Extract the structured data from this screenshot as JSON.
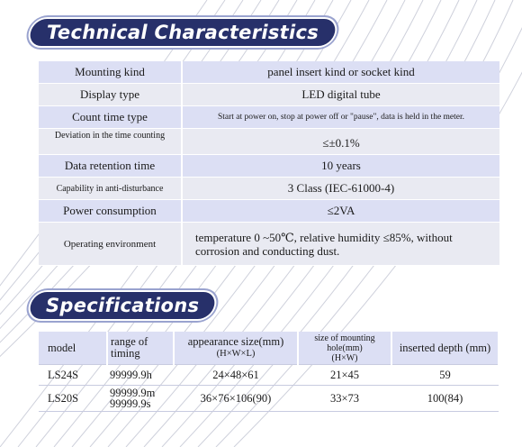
{
  "sections": {
    "technical_title": "Technical Characteristics",
    "specifications_title": "Specifications"
  },
  "technical": [
    {
      "label": "Mounting kind",
      "value": "panel insert kind or socket kind"
    },
    {
      "label": "Display type",
      "value": "LED digital tube"
    },
    {
      "label": "Count time type",
      "value": "Start at power on, stop at power off or \"pause\", data is held in the meter."
    },
    {
      "label": "Deviation in the time counting",
      "value": "≤±0.1%"
    },
    {
      "label": "Data retention time",
      "value": "10 years"
    },
    {
      "label": "Capability in anti-disturbance",
      "value": "3 Class (IEC-61000-4)"
    },
    {
      "label": "Power consumption",
      "value": "≤2VA"
    },
    {
      "label": "Operating environment",
      "value": "temperature 0 ~50℃, relative humidity ≤85%, without corrosion and conducting dust."
    }
  ],
  "specifications": {
    "headers": {
      "model": "model",
      "range": "range of timing",
      "appearance": "appearance size(mm)",
      "appearance_sub": "(H×W×L)",
      "hole": "size of mounting hole(mm)",
      "hole_sub": "(H×W)",
      "depth": "inserted depth (mm)"
    },
    "rows": [
      {
        "model": "LS24S",
        "range": [
          "99999.9h"
        ],
        "appearance": "24×48×61",
        "hole": "21×45",
        "depth": "59"
      },
      {
        "model": "LS20S",
        "range": [
          "99999.9m",
          "99999.9s"
        ],
        "appearance": "36×76×106(90)",
        "hole": "33×73",
        "depth": "100(84)"
      }
    ]
  },
  "colors": {
    "banner": "#27306a",
    "row_light": "#dcdff4",
    "row_alt": "#e9eaf2"
  }
}
